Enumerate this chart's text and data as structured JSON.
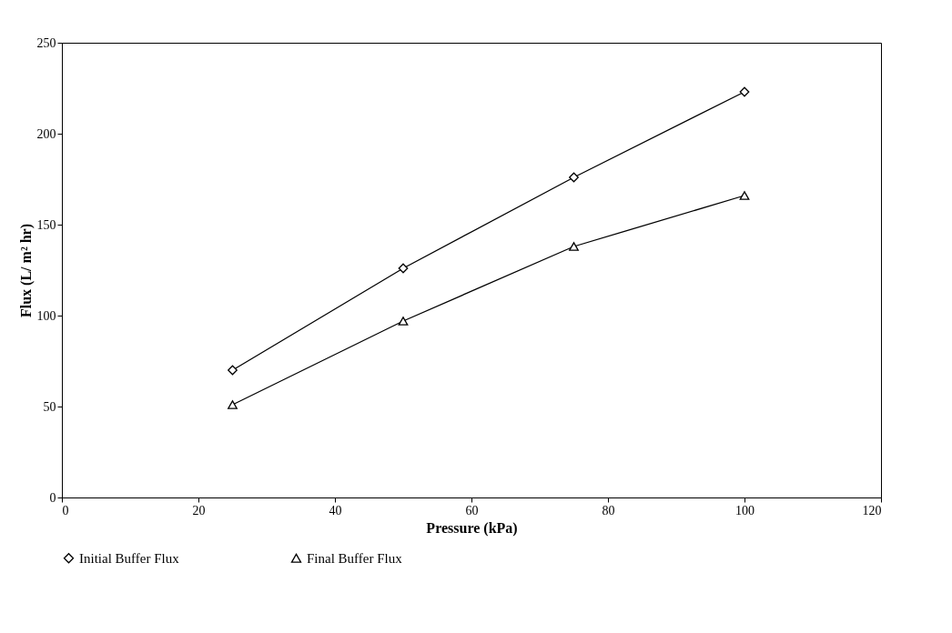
{
  "chart_data": {
    "type": "line",
    "xlabel": "Pressure (kPa)",
    "ylabel": "Flux (L/ m² hr)",
    "xlim": [
      0,
      120
    ],
    "xticks": [
      0,
      20,
      40,
      60,
      80,
      100,
      120
    ],
    "ylim": [
      0,
      250
    ],
    "yticks": [
      0,
      50,
      100,
      150,
      200,
      250
    ],
    "grid": false,
    "legend": "bottom",
    "line_style": "solid",
    "series": [
      {
        "name": "Initial Buffer Flux",
        "color": "#000000",
        "marker": "diamond",
        "x": [
          25,
          50,
          75,
          100
        ],
        "values": [
          70,
          126,
          176,
          223
        ]
      },
      {
        "name": "Final Buffer Flux",
        "color": "#000000",
        "marker": "triangle",
        "x": [
          25,
          50,
          75,
          100
        ],
        "values": [
          51,
          97,
          138,
          166
        ]
      }
    ]
  }
}
